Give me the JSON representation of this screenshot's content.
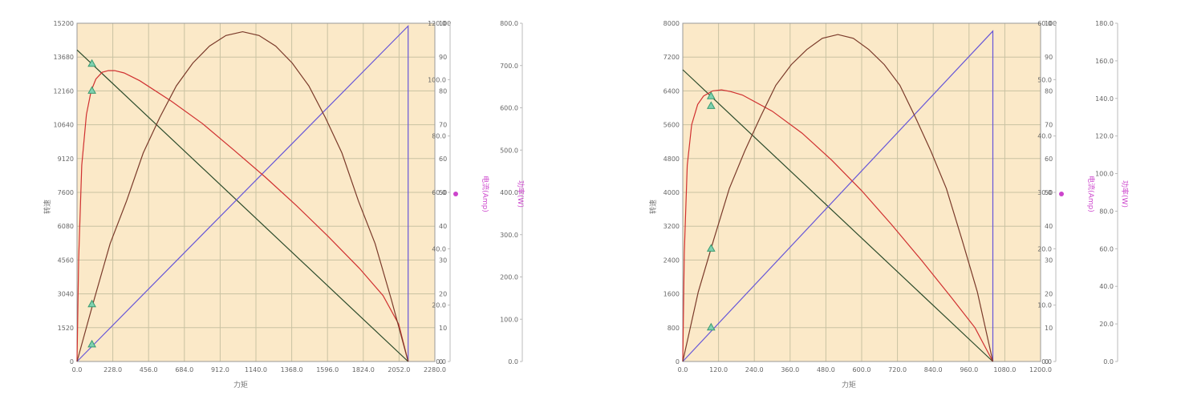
{
  "colors": {
    "plot_bg": "#fbe9c8",
    "grid": "#c9c2a2",
    "axis": "#999999",
    "torque_speed_line": "#2a4a2a",
    "current_line": "#6656d8",
    "efficiency_line": "#d03030",
    "power_line": "#7a3a2a",
    "marker_fill": "#7fd1b0",
    "marker_stroke": "#3a9a70",
    "pink_label": "#cc44cc"
  },
  "chart_data": [
    {
      "type": "line",
      "xlabel": "力矩",
      "ylabel": "转速",
      "y2_label": "电流(Amp)",
      "y4_label": "功率(W)",
      "x_ticks": [
        "0.0",
        "228.0",
        "456.0",
        "684.0",
        "912.0",
        "1140.0",
        "1368.0",
        "1596.0",
        "1824.0",
        "2052.0",
        "2280.0"
      ],
      "xlim": [
        0,
        2280
      ],
      "ylim": [
        0,
        15200
      ],
      "y_ticks": [
        "0",
        "1520",
        "3040",
        "4560",
        "6080",
        "7600",
        "9120",
        "10640",
        "12160",
        "13680",
        "15200"
      ],
      "y1_ticks": [
        "0",
        "10",
        "20",
        "30",
        "40",
        "50",
        "60",
        "70",
        "80",
        "90",
        "100"
      ],
      "y1_lim": [
        0,
        100
      ],
      "y2_ticks": [
        "0.0",
        "20.0",
        "40.0",
        "60.0",
        "80.0",
        "100.0",
        "120.0"
      ],
      "y2_lim": [
        0,
        120
      ],
      "y3_ticks": [
        "0.0",
        "100.0",
        "200.0",
        "300.0",
        "400.0",
        "500.0",
        "600.0",
        "700.0",
        "800.0"
      ],
      "y3_lim": [
        0,
        800
      ],
      "series": [
        {
          "name": "speed",
          "axis": "y",
          "x": [
            0,
            2110
          ],
          "y": [
            14000,
            0
          ]
        },
        {
          "name": "current",
          "axis": "y2",
          "x": [
            0,
            2110,
            2110
          ],
          "y": [
            0,
            119,
            0
          ]
        },
        {
          "name": "efficiency",
          "axis": "y1",
          "x": [
            0,
            10,
            30,
            60,
            90,
            120,
            160,
            200,
            240,
            300,
            400,
            600,
            800,
            1000,
            1200,
            1400,
            1600,
            1800,
            1950,
            2050,
            2110
          ],
          "y": [
            0,
            30,
            58,
            73,
            80,
            83.5,
            85.5,
            86,
            86,
            85.3,
            83,
            77,
            70.3,
            62.5,
            54.5,
            46,
            37,
            27.5,
            19.5,
            11,
            0
          ]
        },
        {
          "name": "output_power",
          "axis": "y3",
          "x": [
            0,
            100,
            211,
            316,
            422,
            527,
            633,
            738,
            844,
            949,
            1055,
            1160,
            1266,
            1371,
            1477,
            1582,
            1688,
            1793,
            1899,
            2004,
            2110
          ],
          "y": [
            0,
            135,
            279,
            380,
            493,
            577,
            652,
            706,
            746,
            771,
            780,
            771,
            746,
            706,
            652,
            577,
            493,
            380,
            279,
            145,
            0
          ]
        }
      ],
      "markers": [
        {
          "axis": "y",
          "x": 95,
          "y": 13370
        },
        {
          "axis": "y1",
          "x": 95,
          "y": 80
        },
        {
          "axis": "y3",
          "x": 95,
          "y": 135
        },
        {
          "axis": "y2",
          "x": 95,
          "y": 6
        }
      ]
    },
    {
      "type": "line",
      "xlabel": "力矩",
      "ylabel": "转速",
      "y2_label": "电流(Amp)",
      "y4_label": "功率(W)",
      "x_ticks": [
        "0.0",
        "120.0",
        "240.0",
        "360.0",
        "480.0",
        "600.0",
        "720.0",
        "840.0",
        "960.0",
        "1080.0",
        "1200.0"
      ],
      "xlim": [
        0,
        1200
      ],
      "ylim": [
        0,
        8000
      ],
      "y_ticks": [
        "0",
        "800",
        "1600",
        "2400",
        "3200",
        "4000",
        "4800",
        "5600",
        "6400",
        "7200",
        "8000"
      ],
      "y1_ticks": [
        "0",
        "10",
        "20",
        "30",
        "40",
        "50",
        "60",
        "70",
        "80",
        "90",
        "100"
      ],
      "y1_lim": [
        0,
        100
      ],
      "y2_ticks": [
        "0.0",
        "10.0",
        "20.0",
        "30.0",
        "40.0",
        "50.0",
        "60.0"
      ],
      "y2_lim": [
        0,
        60
      ],
      "y3_ticks": [
        "0.0",
        "20.0",
        "40.0",
        "60.0",
        "80.0",
        "100.0",
        "120.0",
        "140.0",
        "160.0",
        "180.0"
      ],
      "y3_lim": [
        0,
        180
      ],
      "series": [
        {
          "name": "speed",
          "axis": "y",
          "x": [
            0,
            1040
          ],
          "y": [
            6900,
            0
          ]
        },
        {
          "name": "current",
          "axis": "y2",
          "x": [
            0,
            1040,
            1040
          ],
          "y": [
            0,
            58.6,
            0
          ]
        },
        {
          "name": "efficiency",
          "axis": "y1",
          "x": [
            0,
            5,
            15,
            30,
            50,
            70,
            100,
            130,
            160,
            200,
            300,
            400,
            500,
            600,
            700,
            800,
            900,
            980,
            1040
          ],
          "y": [
            0,
            32,
            58,
            70,
            76,
            78.5,
            80,
            80.3,
            79.8,
            78.8,
            74,
            67.5,
            59.5,
            50.5,
            40.5,
            30,
            19,
            10,
            0
          ]
        },
        {
          "name": "output_power",
          "axis": "y3",
          "x": [
            0,
            52,
            104,
            156,
            208,
            260,
            312,
            364,
            416,
            468,
            520,
            572,
            624,
            676,
            728,
            780,
            832,
            884,
            936,
            988,
            1040
          ],
          "y": [
            0,
            37,
            65,
            92,
            112,
            130,
            147,
            158,
            166,
            172,
            174,
            172,
            166,
            158,
            147,
            130,
            112,
            92,
            65,
            37,
            0
          ]
        }
      ],
      "markers": [
        {
          "axis": "y",
          "x": 95,
          "y": 6270
        },
        {
          "axis": "y1",
          "x": 95,
          "y": 75.5
        },
        {
          "axis": "y3",
          "x": 95,
          "y": 60
        },
        {
          "axis": "y2",
          "x": 95,
          "y": 6
        }
      ]
    }
  ]
}
